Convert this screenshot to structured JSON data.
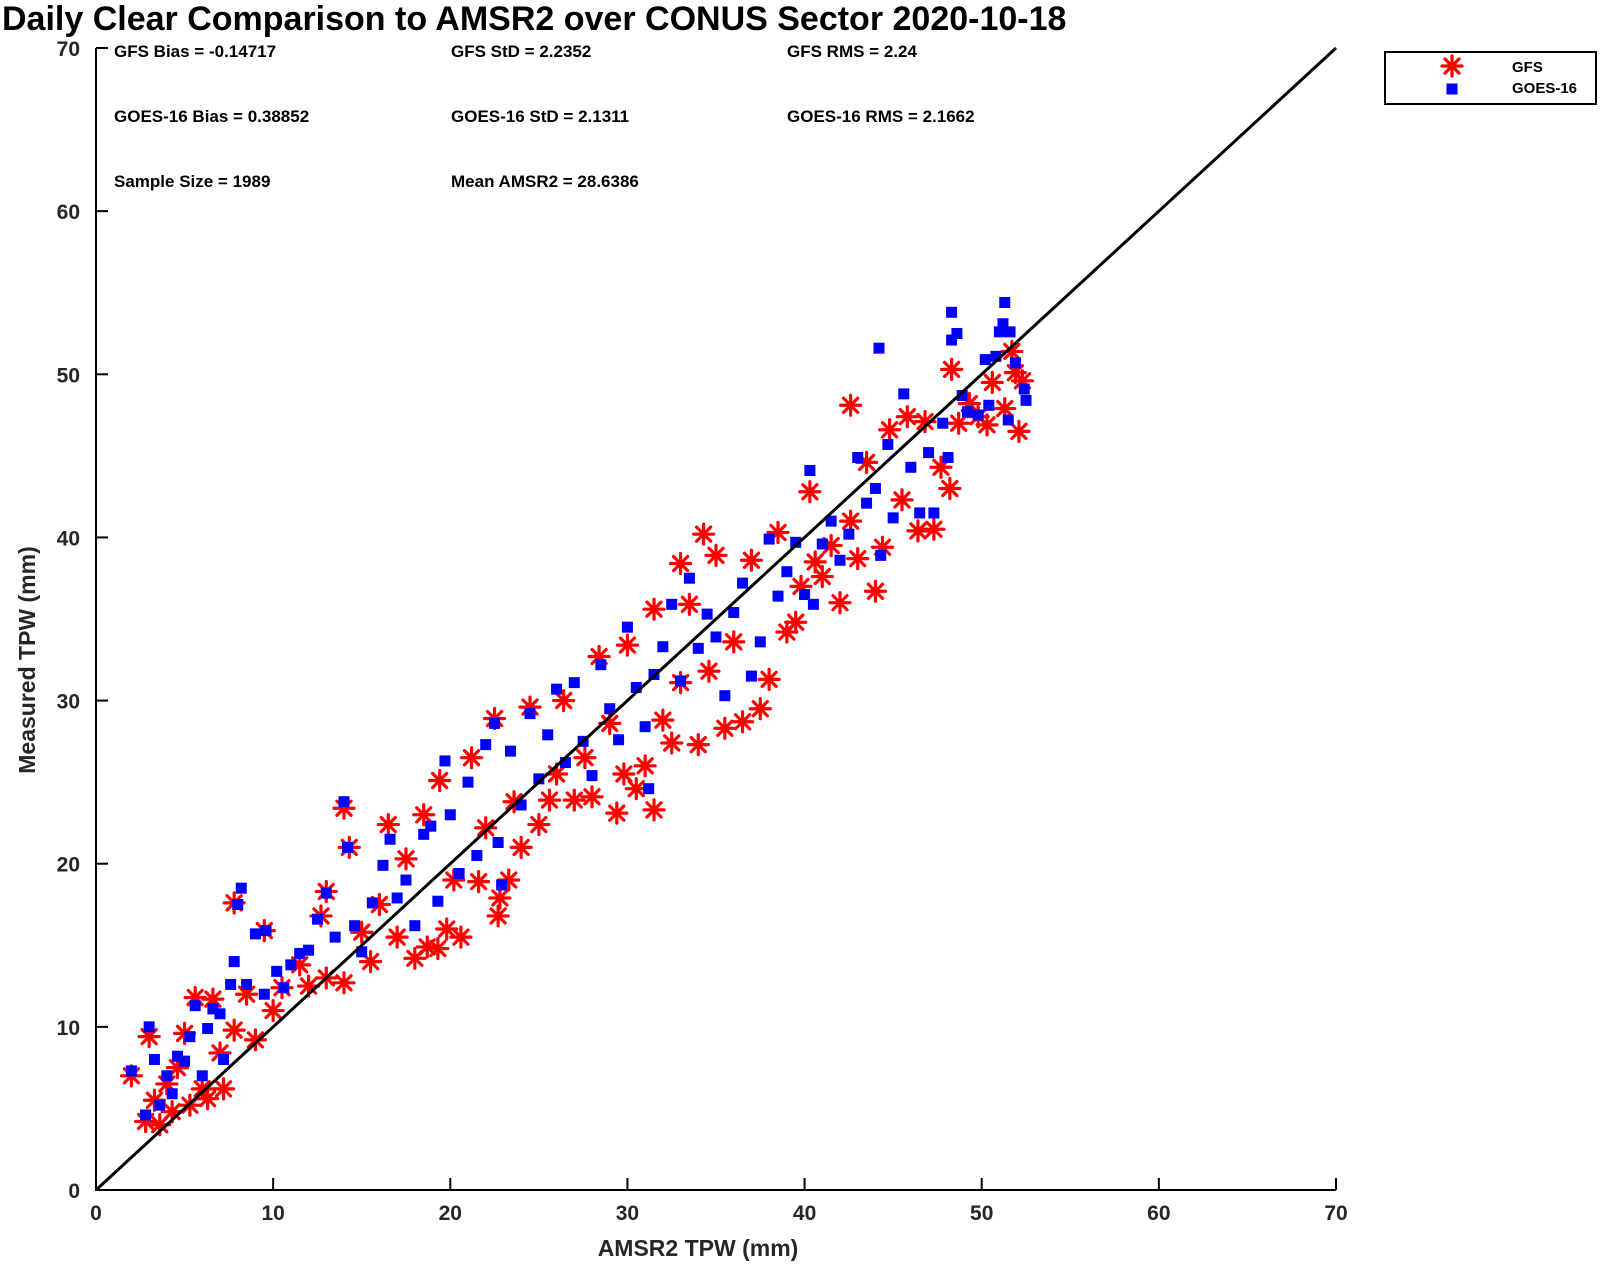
{
  "chart_data": {
    "type": "scatter",
    "title": "Daily Clear Comparison to AMSR2 over CONUS Sector 2020-10-18",
    "xlabel": "AMSR2 TPW (mm)",
    "ylabel": "Measured TPW (mm)",
    "xlim": [
      0,
      70
    ],
    "ylim": [
      0,
      70
    ],
    "xticks": [
      "0",
      "10",
      "20",
      "30",
      "40",
      "50",
      "60",
      "70"
    ],
    "yticks": [
      "0",
      "10",
      "20",
      "30",
      "40",
      "50",
      "60",
      "70"
    ],
    "grid": false,
    "legend_position": "top-right, outside plot area",
    "reference_line": {
      "x": [
        0,
        70
      ],
      "y": [
        0,
        70
      ],
      "color": "#000000"
    },
    "stats": {
      "gfs_bias": "GFS Bias = -0.14717",
      "gfs_std": "GFS StD = 2.2352",
      "gfs_rms": "GFS RMS = 2.24",
      "goes_bias": "GOES-16 Bias = 0.38852",
      "goes_std": "GOES-16 StD = 2.1311",
      "goes_rms": "GOES-16 RMS = 2.1662",
      "sample_size": "Sample Size = 1989",
      "mean_amsr2": "Mean AMSR2 = 28.6386"
    },
    "series": [
      {
        "name": "GFS",
        "marker": "asterisk",
        "color": "#ff0000",
        "points": [
          [
            2,
            7
          ],
          [
            2.8,
            4.2
          ],
          [
            3,
            9.4
          ],
          [
            3.3,
            5.5
          ],
          [
            3.6,
            4
          ],
          [
            4,
            6.5
          ],
          [
            4.3,
            4.8
          ],
          [
            4.6,
            7.5
          ],
          [
            5,
            9.6
          ],
          [
            5.3,
            5.2
          ],
          [
            5.6,
            11.8
          ],
          [
            6,
            6.2
          ],
          [
            6.3,
            5.6
          ],
          [
            6.6,
            11.7
          ],
          [
            7,
            8.4
          ],
          [
            7.2,
            6.2
          ],
          [
            7.8,
            9.8
          ],
          [
            7.8,
            17.6
          ],
          [
            8.5,
            12
          ],
          [
            9,
            9.2
          ],
          [
            9.5,
            15.9
          ],
          [
            10,
            11
          ],
          [
            10.5,
            12.4
          ],
          [
            11.5,
            13.8
          ],
          [
            12,
            12.5
          ],
          [
            12.7,
            16.8
          ],
          [
            13,
            18.3
          ],
          [
            13,
            13
          ],
          [
            14,
            23.4
          ],
          [
            14.3,
            21
          ],
          [
            14,
            12.7
          ],
          [
            15,
            15.8
          ],
          [
            15.5,
            14
          ],
          [
            16.5,
            22.4
          ],
          [
            16,
            17.5
          ],
          [
            17,
            15.5
          ],
          [
            17.5,
            20.3
          ],
          [
            18,
            14.2
          ],
          [
            18.5,
            23
          ],
          [
            18.7,
            14.9
          ],
          [
            19.3,
            14.8
          ],
          [
            19.4,
            25.1
          ],
          [
            19.8,
            16
          ],
          [
            20.2,
            19
          ],
          [
            20.6,
            15.5
          ],
          [
            21.2,
            26.5
          ],
          [
            21.6,
            18.9
          ],
          [
            22,
            22.2
          ],
          [
            22.5,
            28.9
          ],
          [
            22.8,
            17.9
          ],
          [
            22.7,
            16.8
          ],
          [
            23.3,
            19
          ],
          [
            23.6,
            23.8
          ],
          [
            24,
            21
          ],
          [
            24.5,
            29.6
          ],
          [
            25,
            22.4
          ],
          [
            25.6,
            23.9
          ],
          [
            26,
            25.5
          ],
          [
            26.4,
            30
          ],
          [
            27,
            23.9
          ],
          [
            27.6,
            26.5
          ],
          [
            28,
            24.1
          ],
          [
            28.4,
            32.7
          ],
          [
            29,
            28.6
          ],
          [
            29.4,
            23.1
          ],
          [
            29.8,
            25.5
          ],
          [
            30,
            33.4
          ],
          [
            30.5,
            24.6
          ],
          [
            31,
            26
          ],
          [
            31.5,
            23.3
          ],
          [
            31.5,
            35.6
          ],
          [
            32,
            28.8
          ],
          [
            32.5,
            27.4
          ],
          [
            33,
            31.1
          ],
          [
            33.5,
            35.9
          ],
          [
            33,
            38.4
          ],
          [
            34,
            27.3
          ],
          [
            34.3,
            40.2
          ],
          [
            34.6,
            31.8
          ],
          [
            35,
            38.9
          ],
          [
            35.5,
            28.3
          ],
          [
            36,
            33.6
          ],
          [
            36.5,
            28.7
          ],
          [
            37,
            38.6
          ],
          [
            37.5,
            29.5
          ],
          [
            38,
            31.3
          ],
          [
            38.5,
            40.3
          ],
          [
            39,
            34.2
          ],
          [
            39.5,
            34.8
          ],
          [
            39.8,
            37
          ],
          [
            40.3,
            42.8
          ],
          [
            40.6,
            38.5
          ],
          [
            41,
            37.6
          ],
          [
            41.5,
            39.5
          ],
          [
            42,
            36
          ],
          [
            42.6,
            41
          ],
          [
            42.6,
            48.1
          ],
          [
            43,
            38.7
          ],
          [
            43.5,
            44.6
          ],
          [
            44,
            36.7
          ],
          [
            44.4,
            39.4
          ],
          [
            44.8,
            46.6
          ],
          [
            45.5,
            42.3
          ],
          [
            45.8,
            47.4
          ],
          [
            46.4,
            40.4
          ],
          [
            46.8,
            47.1
          ],
          [
            47.3,
            40.5
          ],
          [
            47.7,
            44.3
          ],
          [
            48.2,
            43
          ],
          [
            48.3,
            50.3
          ],
          [
            48.7,
            47
          ],
          [
            49.3,
            48.2
          ],
          [
            49.8,
            47.4
          ],
          [
            50.3,
            46.9
          ],
          [
            50.6,
            49.5
          ],
          [
            51.3,
            47.9
          ],
          [
            51.7,
            51.4
          ],
          [
            52.1,
            46.5
          ],
          [
            52.3,
            49.6
          ],
          [
            51.9,
            50.1
          ]
        ]
      },
      {
        "name": "GOES-16",
        "marker": "square",
        "color": "#0000ff",
        "points": [
          [
            2,
            7.3
          ],
          [
            2.8,
            4.6
          ],
          [
            3,
            10
          ],
          [
            3.3,
            8
          ],
          [
            3.6,
            5.2
          ],
          [
            4,
            7
          ],
          [
            4.3,
            5.9
          ],
          [
            4.6,
            8.2
          ],
          [
            5,
            7.9
          ],
          [
            5.3,
            9.4
          ],
          [
            5.6,
            11.3
          ],
          [
            6,
            7
          ],
          [
            6.3,
            9.9
          ],
          [
            6.6,
            11.1
          ],
          [
            7,
            10.8
          ],
          [
            7.2,
            8
          ],
          [
            7.6,
            12.6
          ],
          [
            7.8,
            14
          ],
          [
            8.2,
            18.5
          ],
          [
            8,
            17.5
          ],
          [
            8.5,
            12.6
          ],
          [
            9,
            15.7
          ],
          [
            9.5,
            12
          ],
          [
            9.6,
            15.9
          ],
          [
            10.2,
            13.4
          ],
          [
            10.6,
            12.4
          ],
          [
            11,
            13.8
          ],
          [
            11.5,
            14.5
          ],
          [
            12,
            14.7
          ],
          [
            12.5,
            16.6
          ],
          [
            13,
            18.2
          ],
          [
            13.5,
            15.5
          ],
          [
            14,
            23.8
          ],
          [
            14.2,
            21
          ],
          [
            14.6,
            16.2
          ],
          [
            15,
            14.6
          ],
          [
            15.6,
            17.6
          ],
          [
            16.2,
            19.9
          ],
          [
            16.6,
            21.5
          ],
          [
            17,
            17.9
          ],
          [
            17.5,
            19
          ],
          [
            18,
            16.2
          ],
          [
            18.5,
            21.8
          ],
          [
            18.9,
            22.3
          ],
          [
            19.3,
            17.7
          ],
          [
            19.7,
            26.3
          ],
          [
            20,
            23
          ],
          [
            20.5,
            19.4
          ],
          [
            21,
            25
          ],
          [
            21.5,
            20.5
          ],
          [
            22,
            27.3
          ],
          [
            22.5,
            28.6
          ],
          [
            22.7,
            21.3
          ],
          [
            22.9,
            18.7
          ],
          [
            23.4,
            26.9
          ],
          [
            24,
            23.6
          ],
          [
            24.5,
            29.2
          ],
          [
            25,
            25.2
          ],
          [
            25.5,
            27.9
          ],
          [
            26,
            30.7
          ],
          [
            26.5,
            26.2
          ],
          [
            27,
            31.1
          ],
          [
            27.5,
            27.5
          ],
          [
            28,
            25.4
          ],
          [
            28.5,
            32.2
          ],
          [
            29,
            29.5
          ],
          [
            29.5,
            27.6
          ],
          [
            30,
            34.5
          ],
          [
            30.5,
            30.8
          ],
          [
            31,
            28.4
          ],
          [
            31.2,
            24.6
          ],
          [
            31.5,
            31.6
          ],
          [
            32,
            33.3
          ],
          [
            32.5,
            35.9
          ],
          [
            33,
            31.2
          ],
          [
            33.5,
            37.5
          ],
          [
            34,
            33.2
          ],
          [
            34.5,
            35.3
          ],
          [
            35,
            33.9
          ],
          [
            35.5,
            30.3
          ],
          [
            36,
            35.4
          ],
          [
            36.5,
            37.2
          ],
          [
            37,
            31.5
          ],
          [
            37.5,
            33.6
          ],
          [
            38,
            39.9
          ],
          [
            38.5,
            36.4
          ],
          [
            39,
            37.9
          ],
          [
            39.5,
            39.7
          ],
          [
            40,
            36.5
          ],
          [
            40.3,
            44.1
          ],
          [
            40.5,
            35.9
          ],
          [
            41,
            39.6
          ],
          [
            41.5,
            41
          ],
          [
            42,
            38.6
          ],
          [
            42.5,
            40.2
          ],
          [
            43,
            44.9
          ],
          [
            43.5,
            42.1
          ],
          [
            44,
            43
          ],
          [
            44.3,
            38.9
          ],
          [
            44.7,
            45.7
          ],
          [
            45,
            41.2
          ],
          [
            45.6,
            48.8
          ],
          [
            46,
            44.3
          ],
          [
            46.5,
            41.5
          ],
          [
            47,
            45.2
          ],
          [
            47.3,
            41.5
          ],
          [
            47.8,
            47
          ],
          [
            48.1,
            44.9
          ],
          [
            48.3,
            52.1
          ],
          [
            48.3,
            53.8
          ],
          [
            48.6,
            52.5
          ],
          [
            44.2,
            51.6
          ],
          [
            48.9,
            48.7
          ],
          [
            49.2,
            47.7
          ],
          [
            49.8,
            47.5
          ],
          [
            50.4,
            48.1
          ],
          [
            50.8,
            51.1
          ],
          [
            51,
            52.6
          ],
          [
            51.2,
            53.1
          ],
          [
            51.3,
            54.4
          ],
          [
            51.6,
            52.6
          ],
          [
            51.5,
            47.2
          ],
          [
            51.9,
            50.7
          ],
          [
            52.4,
            49.1
          ],
          [
            52.5,
            48.4
          ],
          [
            50.2,
            50.9
          ]
        ]
      }
    ]
  }
}
